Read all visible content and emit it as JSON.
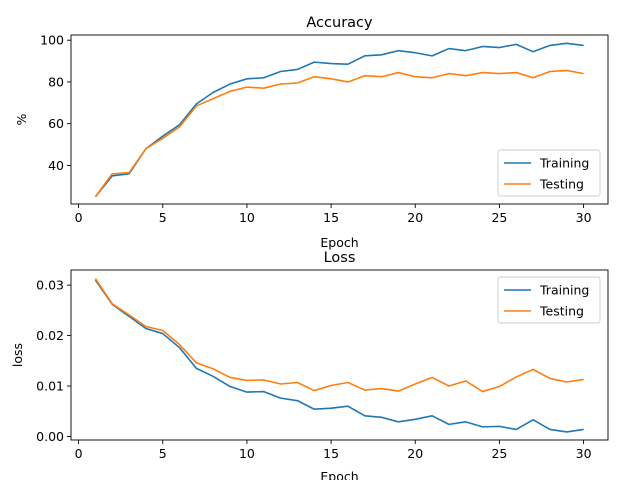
{
  "chart_data": [
    {
      "type": "line",
      "title": "Accuracy",
      "xlabel": "Epoch",
      "ylabel": "%",
      "xlim": [
        -0.45,
        31.45
      ],
      "ylim": [
        21.5,
        102.5
      ],
      "xticks": [
        "0",
        "5",
        "10",
        "15",
        "20",
        "25",
        "30"
      ],
      "yticks": [
        "40",
        "60",
        "80",
        "100"
      ],
      "grid": false,
      "legend_position": "lower right",
      "x": [
        1,
        2,
        3,
        4,
        5,
        6,
        7,
        8,
        9,
        10,
        11,
        12,
        13,
        14,
        15,
        16,
        17,
        18,
        19,
        20,
        21,
        22,
        23,
        24,
        25,
        26,
        27,
        28,
        29,
        30
      ],
      "series": [
        {
          "name": "Training",
          "color": "#1f77b4",
          "values": [
            25,
            35,
            36,
            48,
            54,
            59.5,
            69.5,
            75,
            79,
            81.5,
            82,
            85,
            86,
            89.5,
            88.8,
            88.5,
            92.5,
            93,
            95,
            94,
            92.5,
            96,
            95,
            97,
            96.5,
            98,
            94.5,
            97.5,
            98.5,
            97.5
          ]
        },
        {
          "name": "Testing",
          "color": "#ff7f0e",
          "values": [
            25,
            36,
            36.5,
            48,
            53,
            58.5,
            68.5,
            72,
            75.5,
            77.5,
            77,
            79,
            79.5,
            82.5,
            81.5,
            80,
            83,
            82.5,
            84.5,
            82.5,
            82,
            84,
            83,
            84.5,
            84,
            84.5,
            82,
            85,
            85.5,
            84
          ]
        }
      ]
    },
    {
      "type": "line",
      "title": "Loss",
      "xlabel": "Epoch",
      "ylabel": "loss",
      "xlim": [
        -0.45,
        31.45
      ],
      "ylim": [
        -0.0007,
        0.033
      ],
      "xticks": [
        "0",
        "5",
        "10",
        "15",
        "20",
        "25",
        "30"
      ],
      "yticks": [
        "0.00",
        "0.01",
        "0.02",
        "0.03"
      ],
      "grid": false,
      "legend_position": "upper right",
      "x": [
        1,
        2,
        3,
        4,
        5,
        6,
        7,
        8,
        9,
        10,
        11,
        12,
        13,
        14,
        15,
        16,
        17,
        18,
        19,
        20,
        21,
        22,
        23,
        24,
        25,
        26,
        27,
        28,
        29,
        30
      ],
      "series": [
        {
          "name": "Training",
          "color": "#1f77b4",
          "values": [
            0.031,
            0.0262,
            0.0238,
            0.0214,
            0.0204,
            0.0176,
            0.0135,
            0.0119,
            0.0099,
            0.0088,
            0.0089,
            0.0076,
            0.0071,
            0.0054,
            0.0056,
            0.006,
            0.0041,
            0.0038,
            0.0029,
            0.0034,
            0.0041,
            0.0024,
            0.0029,
            0.0019,
            0.002,
            0.0014,
            0.0033,
            0.0014,
            0.0009,
            0.0014
          ]
        },
        {
          "name": "Testing",
          "color": "#ff7f0e",
          "values": [
            0.0313,
            0.0263,
            0.0241,
            0.0218,
            0.021,
            0.0182,
            0.0146,
            0.0134,
            0.0117,
            0.0111,
            0.0112,
            0.0104,
            0.0107,
            0.0091,
            0.0101,
            0.0107,
            0.0092,
            0.0095,
            0.009,
            0.0104,
            0.0117,
            0.01,
            0.011,
            0.0089,
            0.0099,
            0.0118,
            0.0133,
            0.0115,
            0.0108,
            0.0113
          ]
        }
      ]
    }
  ]
}
